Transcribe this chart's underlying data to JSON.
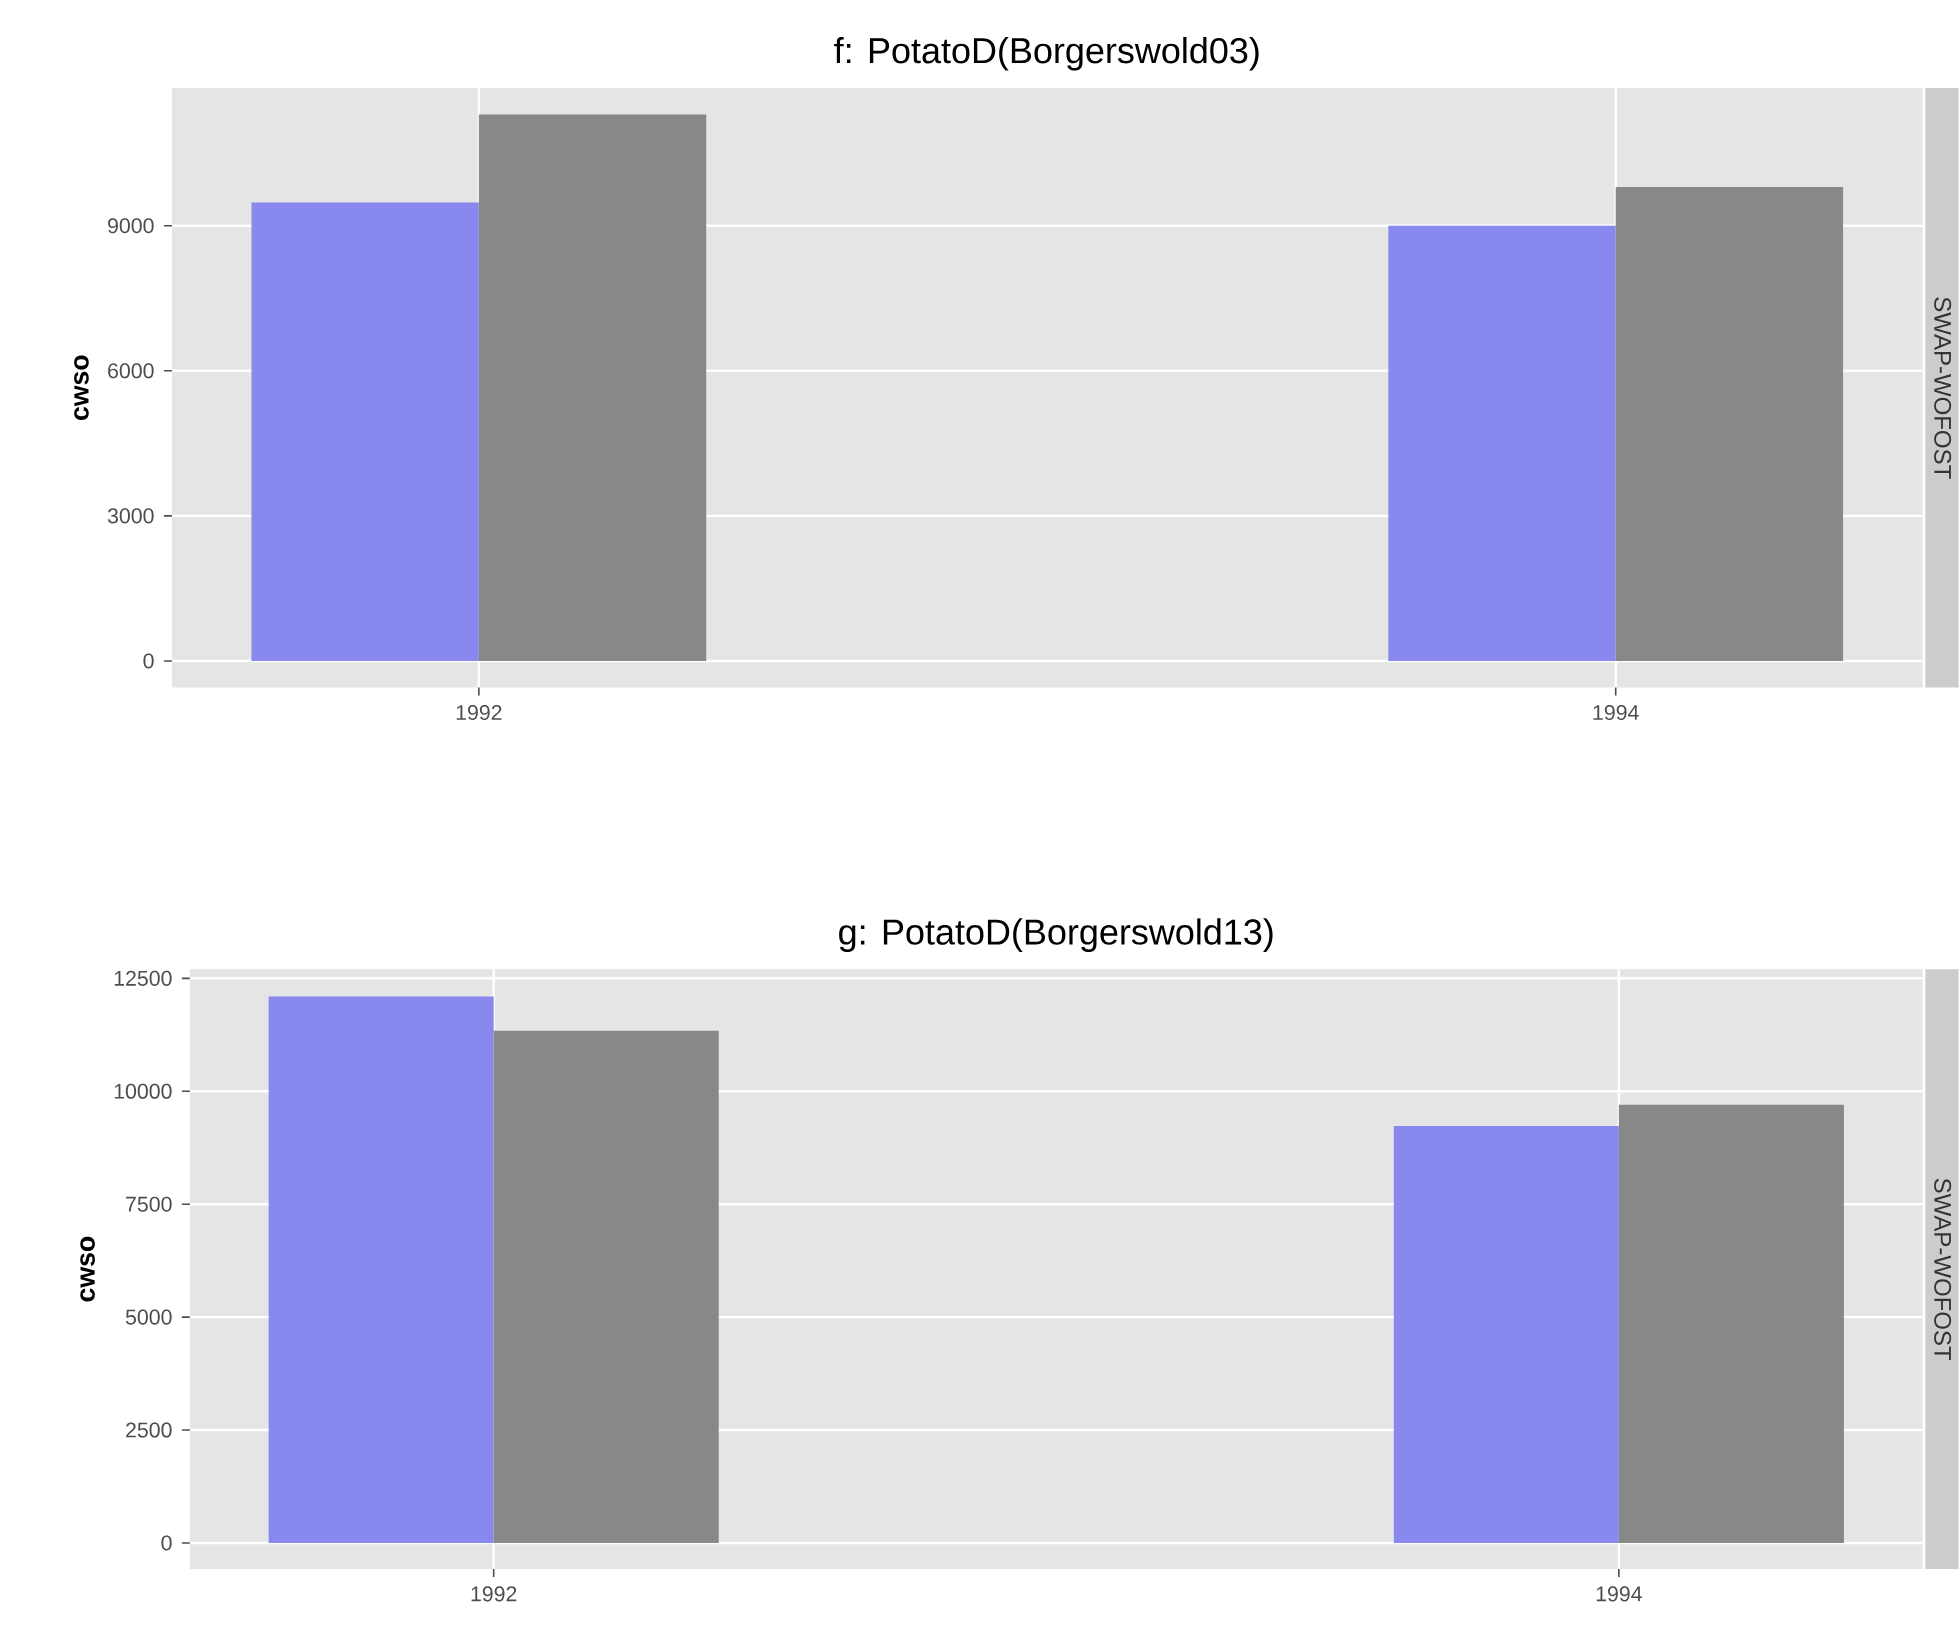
{
  "chart_data": [
    {
      "type": "bar",
      "title": "f: PotatoD(Borgerswold03)",
      "ylabel": "cwso",
      "annotations": [
        "SWAP-WOFOST"
      ],
      "categories": [
        "1992",
        "1994"
      ],
      "ylim": [
        -550,
        11850
      ],
      "yticks": [
        0,
        3000,
        6000,
        9000
      ],
      "grid": true,
      "series": [
        {
          "color": "#8888ee",
          "values": [
            9480,
            9000
          ]
        },
        {
          "color": "#888888",
          "values": [
            11300,
            9800
          ]
        }
      ]
    },
    {
      "type": "bar",
      "title": "g: PotatoD(Borgerswold13)",
      "ylabel": "cwso",
      "annotations": [
        "SWAP-WOFOST"
      ],
      "categories": [
        "1992",
        "1994"
      ],
      "ylim": [
        -575,
        12700
      ],
      "yticks": [
        0,
        2500,
        5000,
        7500,
        10000,
        12500
      ],
      "grid": true,
      "series": [
        {
          "color": "#8888ee",
          "values": [
            12100,
            9230
          ]
        },
        {
          "color": "#888888",
          "values": [
            11340,
            9700
          ]
        }
      ]
    }
  ]
}
